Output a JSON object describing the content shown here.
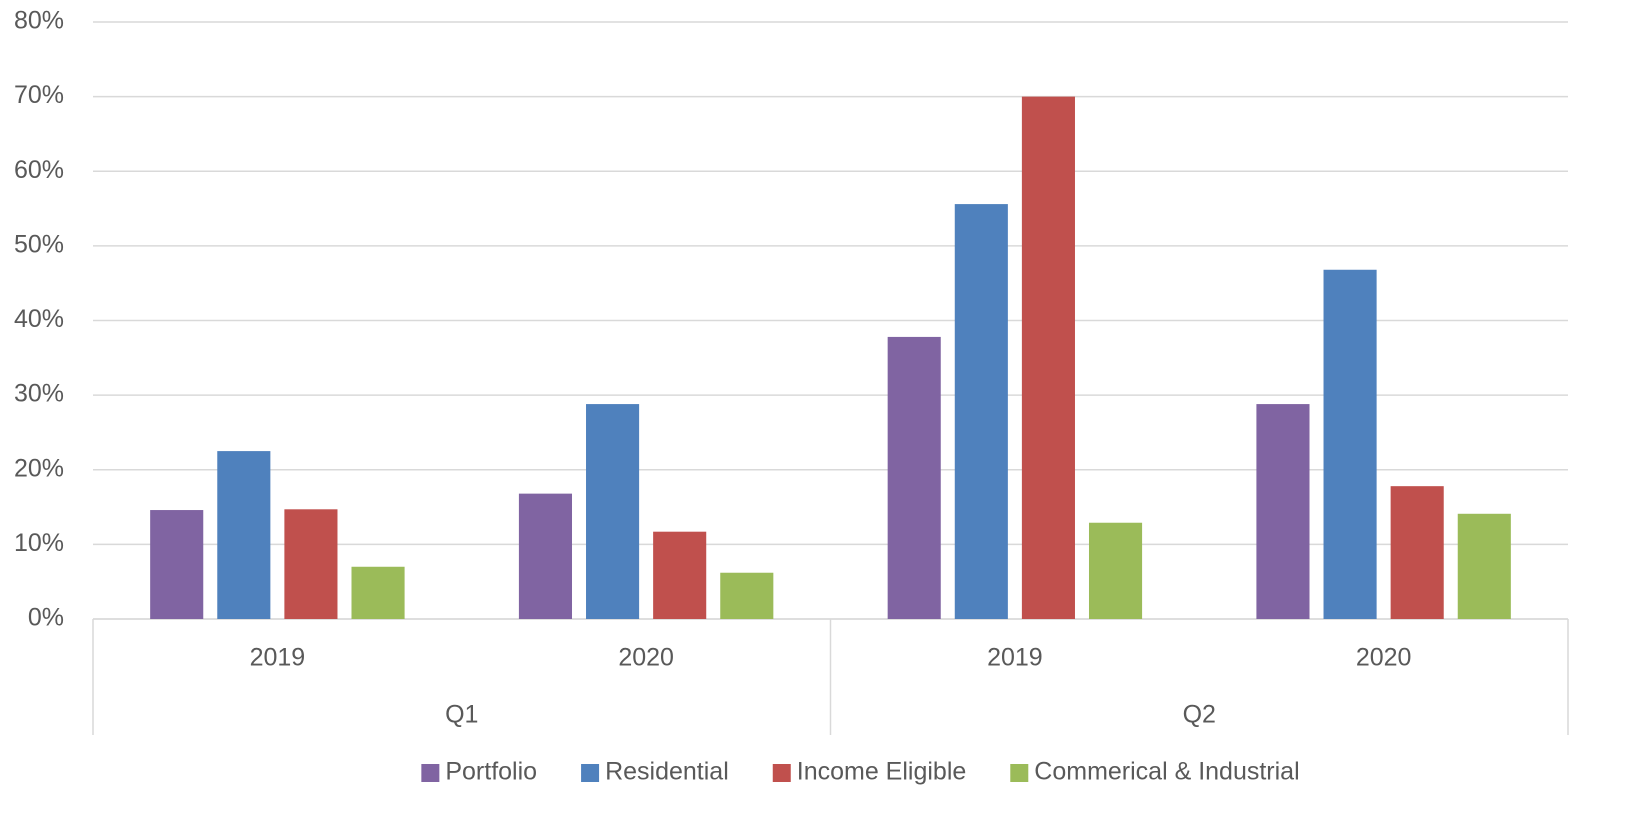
{
  "chart_data": {
    "type": "bar",
    "categories": [
      "2019",
      "2020",
      "2019",
      "2020"
    ],
    "groups": [
      "Q1",
      "Q2"
    ],
    "series": [
      {
        "name": "Portfolio",
        "color": "#8064a2",
        "values": [
          14.6,
          16.8,
          37.8,
          28.8
        ]
      },
      {
        "name": "Residential",
        "color": "#4f81bd",
        "values": [
          22.5,
          28.8,
          55.6,
          46.8
        ]
      },
      {
        "name": "Income Eligible",
        "color": "#c0504d",
        "values": [
          14.7,
          11.7,
          70,
          17.8
        ]
      },
      {
        "name": "Commerical & Industrial",
        "color": "#9bbb59",
        "values": [
          7.0,
          6.2,
          12.9,
          14.1
        ]
      }
    ],
    "ylim": [
      0,
      80
    ],
    "yticks": [
      {
        "value": 0,
        "label": "0%"
      },
      {
        "value": 10,
        "label": "10%"
      },
      {
        "value": 20,
        "label": "20%"
      },
      {
        "value": 30,
        "label": "30%"
      },
      {
        "value": 40,
        "label": "40%"
      },
      {
        "value": 50,
        "label": "50%"
      },
      {
        "value": 60,
        "label": "60%"
      },
      {
        "value": 70,
        "label": "70%"
      },
      {
        "value": 80,
        "label": "80%"
      }
    ],
    "grid": true,
    "legend": "bottom"
  }
}
